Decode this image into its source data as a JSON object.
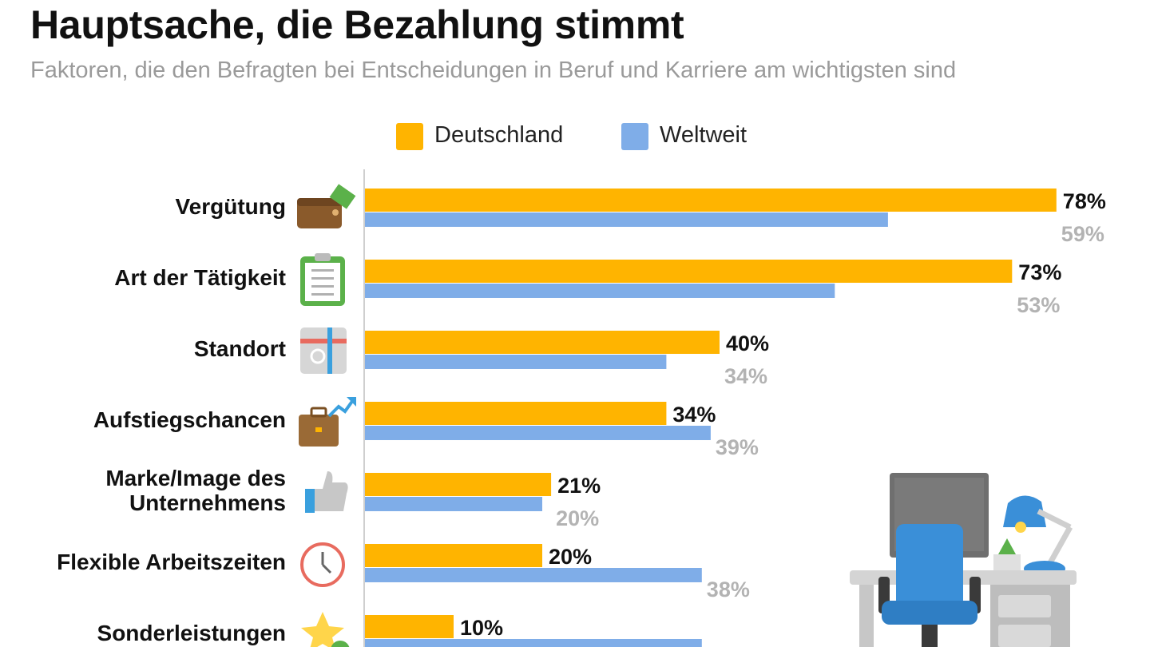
{
  "header": {
    "title": "Hauptsache, die Bezahlung stimmt",
    "subtitle": "Faktoren, die den Befragten bei Entscheidungen in Beruf und Karriere am wichtigsten sind"
  },
  "colors": {
    "deutschland": "#ffb400",
    "weltweit": "#7fade8",
    "axis": "#cfcfcf"
  },
  "chart_data": {
    "type": "bar",
    "orientation": "horizontal",
    "title": "Hauptsache, die Bezahlung stimmt",
    "subtitle": "Faktoren, die den Befragten bei Entscheidungen in Beruf und Karriere am wichtigsten sind",
    "unit": "%",
    "xlim": [
      0,
      100
    ],
    "grid": false,
    "legend_position": "top",
    "categories": [
      [
        "Vergütung"
      ],
      [
        "Art der Tätigkeit"
      ],
      [
        "Standort"
      ],
      [
        "Aufstiegschancen"
      ],
      [
        "Marke/Image des",
        "Unternehmens"
      ],
      [
        "Flexible Arbeitszeiten"
      ],
      [
        "Sonderleistungen"
      ]
    ],
    "category_icons": [
      "wallet-icon",
      "clipboard-icon",
      "map-icon",
      "briefcase-chart-icon",
      "thumbs-up-icon",
      "clock-icon",
      "star-icon"
    ],
    "series": [
      {
        "name": "Deutschland",
        "color": "#ffb400",
        "values": [
          78,
          73,
          40,
          34,
          21,
          20,
          10
        ],
        "labels": [
          "78%",
          "73%",
          "40%",
          "34%",
          "21%",
          "20%",
          "10%"
        ]
      },
      {
        "name": "Weltweit",
        "color": "#7fade8",
        "values": [
          59,
          53,
          34,
          39,
          20,
          38,
          38
        ],
        "labels": [
          "59%",
          "53%",
          "34%",
          "39%",
          "20%",
          "38%",
          "38%"
        ]
      }
    ]
  }
}
